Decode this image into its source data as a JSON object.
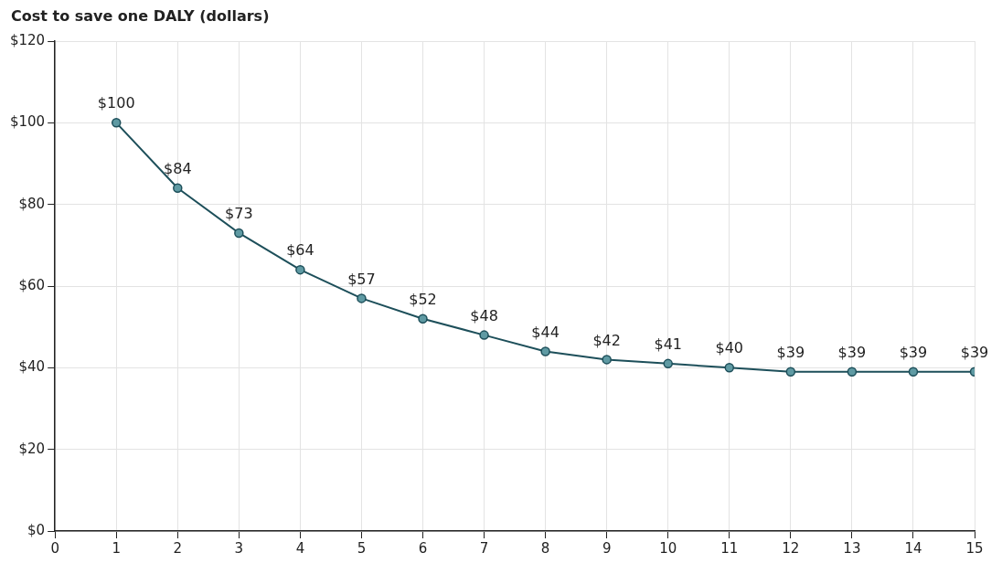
{
  "chart_data": {
    "type": "line",
    "title": "Cost to save one DALY (dollars)",
    "x": [
      1,
      2,
      3,
      4,
      5,
      6,
      7,
      8,
      9,
      10,
      11,
      12,
      13,
      14,
      15
    ],
    "series": [
      {
        "color": "#1d4f5a",
        "values": [
          100,
          84,
          73,
          64,
          57,
          52,
          48,
          44,
          42,
          41,
          40,
          39,
          39,
          39,
          39
        ],
        "value_labels": [
          "$100",
          "$84",
          "$73",
          "$64",
          "$57",
          "$52",
          "$48",
          "$44",
          "$42",
          "$41",
          "$40",
          "$39",
          "$39",
          "$39",
          "$39"
        ]
      }
    ],
    "xlim": [
      0,
      15
    ],
    "xticks": [
      0,
      1,
      2,
      3,
      4,
      5,
      6,
      7,
      8,
      9,
      10,
      11,
      12,
      13,
      14,
      15
    ],
    "ylim": [
      0,
      120
    ],
    "yticks": [
      {
        "value": 0,
        "label": "$0"
      },
      {
        "value": 20,
        "label": "$20"
      },
      {
        "value": 40,
        "label": "$40"
      },
      {
        "value": 60,
        "label": "$60"
      },
      {
        "value": 80,
        "label": "$80"
      },
      {
        "value": 100,
        "label": "$100"
      },
      {
        "value": 120,
        "label": "$120"
      }
    ],
    "grid": true,
    "marker": "circle",
    "line_style": "solid",
    "legend": false
  }
}
